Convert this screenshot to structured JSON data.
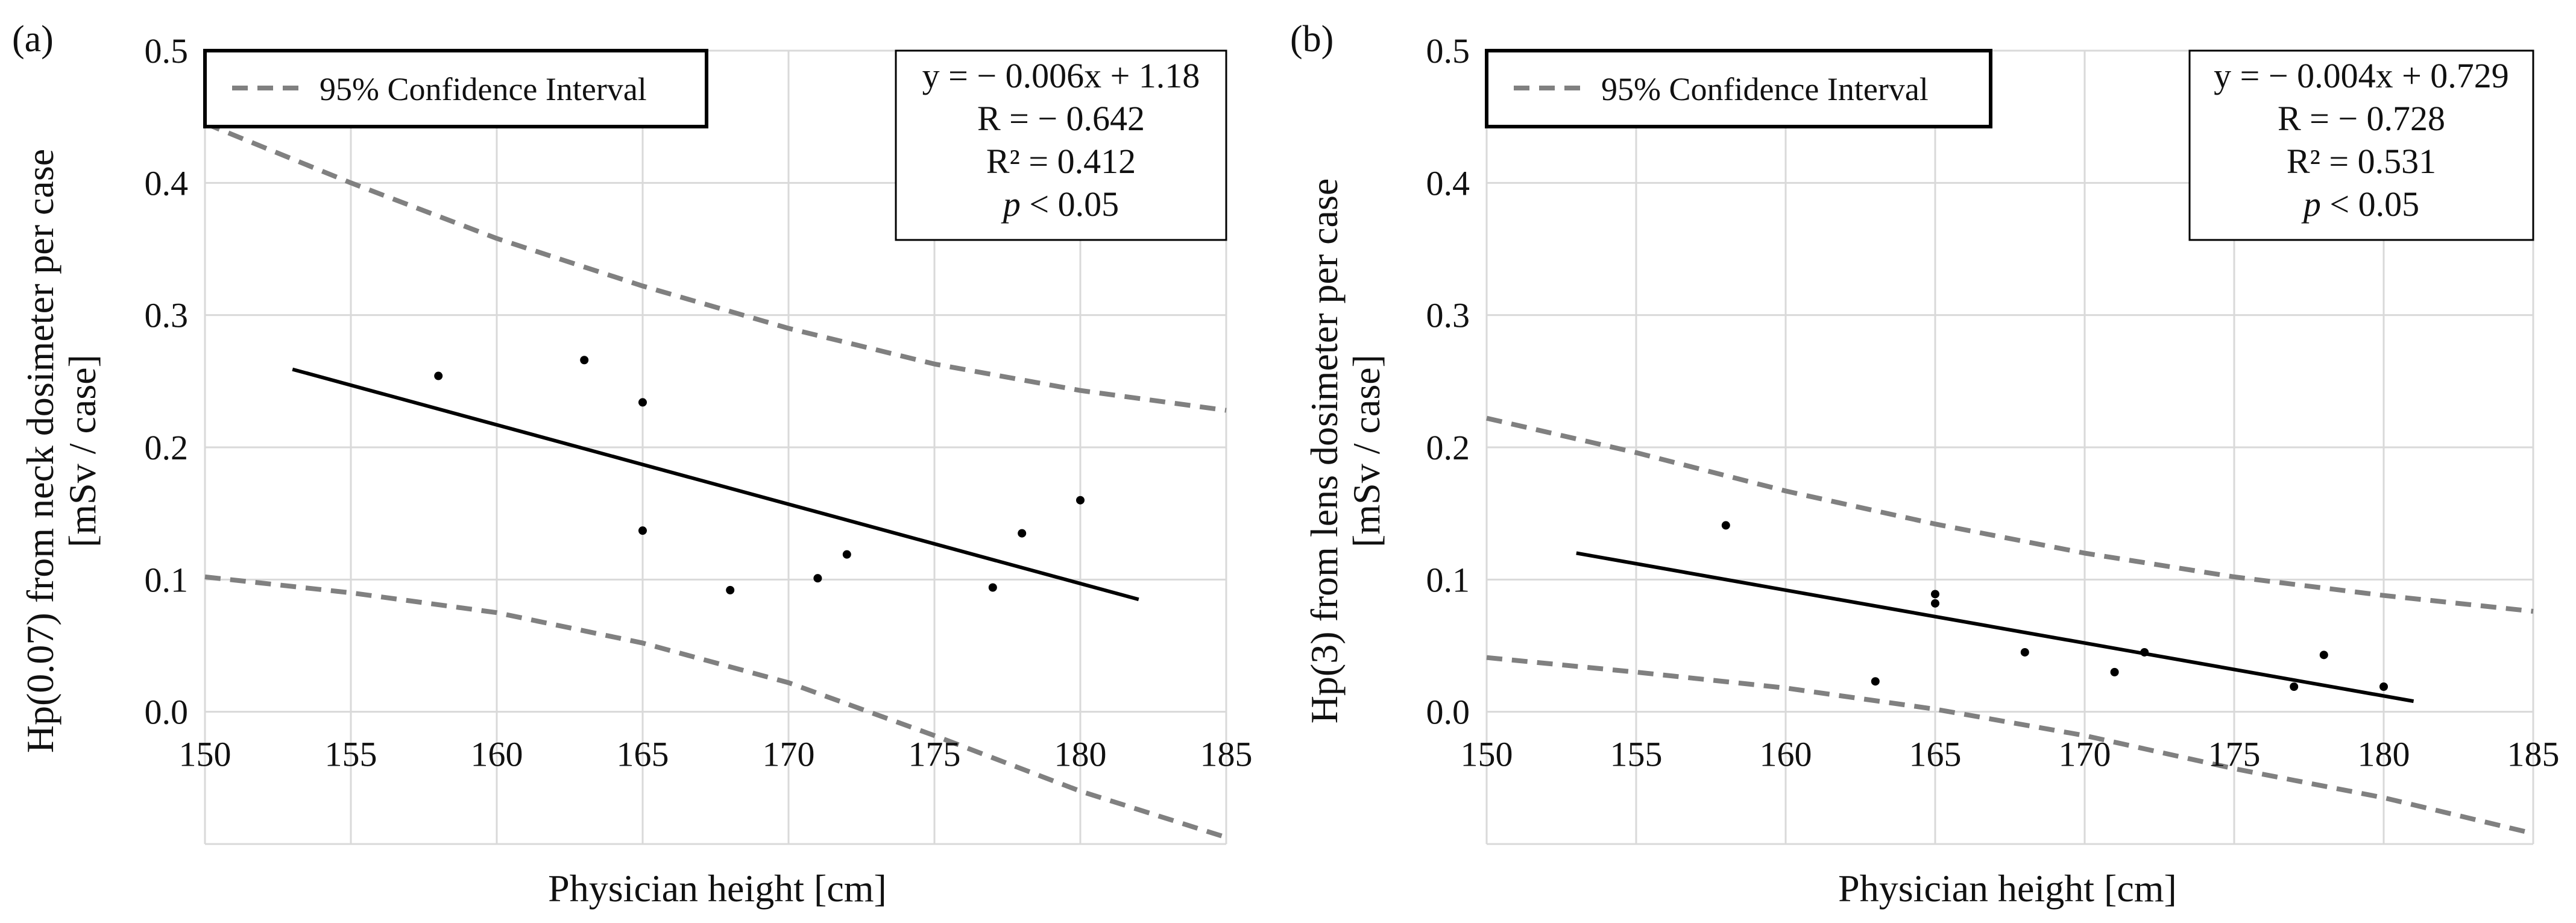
{
  "colors": {
    "background": "#ffffff",
    "grid": "#d9d9d9",
    "data": "#000000",
    "ci": "#808080",
    "box_border": "#000000"
  },
  "chart_data": [
    {
      "panel_label": "(a)",
      "type": "scatter",
      "xlabel": "Physician height [cm]",
      "ylabel_lines": [
        "Hp(0.07) from neck dosimeter per case",
        "[mSv / case]"
      ],
      "xlim": [
        150,
        185
      ],
      "ylim": [
        -0.1,
        0.5
      ],
      "xticks": [
        150,
        155,
        160,
        165,
        170,
        175,
        180,
        185
      ],
      "xtick_labels": [
        "150",
        "155",
        "160",
        "165",
        "170",
        "175",
        "180",
        "185"
      ],
      "yticks": [
        0.0,
        0.1,
        0.2,
        0.3,
        0.4,
        0.5
      ],
      "ytick_labels": [
        "0.0",
        "0.1",
        "0.2",
        "0.3",
        "0.4",
        "0.5"
      ],
      "grid": true,
      "legend": {
        "position": "top-left",
        "entries": [
          "95% Confidence Interval"
        ]
      },
      "stats_box": {
        "equation": "y = − 0.006x + 1.18",
        "r": "R = − 0.642",
        "r2": "R² = 0.412",
        "p_symbol": "p",
        "p_rest": " < 0.05"
      },
      "points": [
        {
          "x": 158,
          "y": 0.254
        },
        {
          "x": 163,
          "y": 0.266
        },
        {
          "x": 165,
          "y": 0.234
        },
        {
          "x": 165,
          "y": 0.137
        },
        {
          "x": 168,
          "y": 0.092
        },
        {
          "x": 171,
          "y": 0.101
        },
        {
          "x": 172,
          "y": 0.119
        },
        {
          "x": 177,
          "y": 0.094
        },
        {
          "x": 178,
          "y": 0.135
        },
        {
          "x": 180,
          "y": 0.16
        }
      ],
      "fit": {
        "x": [
          153,
          182
        ],
        "y": [
          0.259,
          0.085
        ]
      },
      "ci_upper": {
        "x": [
          150,
          155,
          160,
          165,
          170,
          175,
          180,
          185
        ],
        "y": [
          0.445,
          0.4,
          0.358,
          0.322,
          0.29,
          0.263,
          0.243,
          0.228
        ]
      },
      "ci_lower": {
        "x": [
          150,
          155,
          160,
          165,
          170,
          175,
          180,
          185
        ],
        "y": [
          0.102,
          0.09,
          0.075,
          0.052,
          0.022,
          -0.018,
          -0.06,
          -0.095
        ]
      }
    },
    {
      "panel_label": "(b)",
      "type": "scatter",
      "xlabel": "Physician height [cm]",
      "ylabel_lines": [
        "Hp(3) from lens dosimeter per case",
        "[mSv / case]"
      ],
      "xlim": [
        150,
        185
      ],
      "ylim": [
        -0.1,
        0.5
      ],
      "xticks": [
        150,
        155,
        160,
        165,
        170,
        175,
        180,
        185
      ],
      "xtick_labels": [
        "150",
        "155",
        "160",
        "165",
        "170",
        "175",
        "180",
        "185"
      ],
      "yticks": [
        0.0,
        0.1,
        0.2,
        0.3,
        0.4,
        0.5
      ],
      "ytick_labels": [
        "0.0",
        "0.1",
        "0.2",
        "0.3",
        "0.4",
        "0.5"
      ],
      "grid": true,
      "legend": {
        "position": "top-left",
        "entries": [
          "95% Confidence Interval"
        ]
      },
      "stats_box": {
        "equation": "y = − 0.004x + 0.729",
        "r": "R = − 0.728",
        "r2": "R² = 0.531",
        "p_symbol": "p",
        "p_rest": " < 0.05"
      },
      "points": [
        {
          "x": 158,
          "y": 0.141
        },
        {
          "x": 163,
          "y": 0.023
        },
        {
          "x": 165,
          "y": 0.089
        },
        {
          "x": 165,
          "y": 0.082
        },
        {
          "x": 168,
          "y": 0.045
        },
        {
          "x": 171,
          "y": 0.03
        },
        {
          "x": 172,
          "y": 0.045
        },
        {
          "x": 177,
          "y": 0.019
        },
        {
          "x": 178,
          "y": 0.043
        },
        {
          "x": 180,
          "y": 0.019
        }
      ],
      "fit": {
        "x": [
          153,
          181
        ],
        "y": [
          0.12,
          0.008
        ]
      },
      "ci_upper": {
        "x": [
          150,
          155,
          160,
          165,
          170,
          175,
          180,
          185
        ],
        "y": [
          0.222,
          0.196,
          0.167,
          0.142,
          0.12,
          0.102,
          0.088,
          0.076
        ]
      },
      "ci_lower": {
        "x": [
          150,
          155,
          160,
          165,
          170,
          175,
          180,
          185
        ],
        "y": [
          0.041,
          0.03,
          0.018,
          0.002,
          -0.018,
          -0.043,
          -0.065,
          -0.092
        ]
      }
    }
  ]
}
